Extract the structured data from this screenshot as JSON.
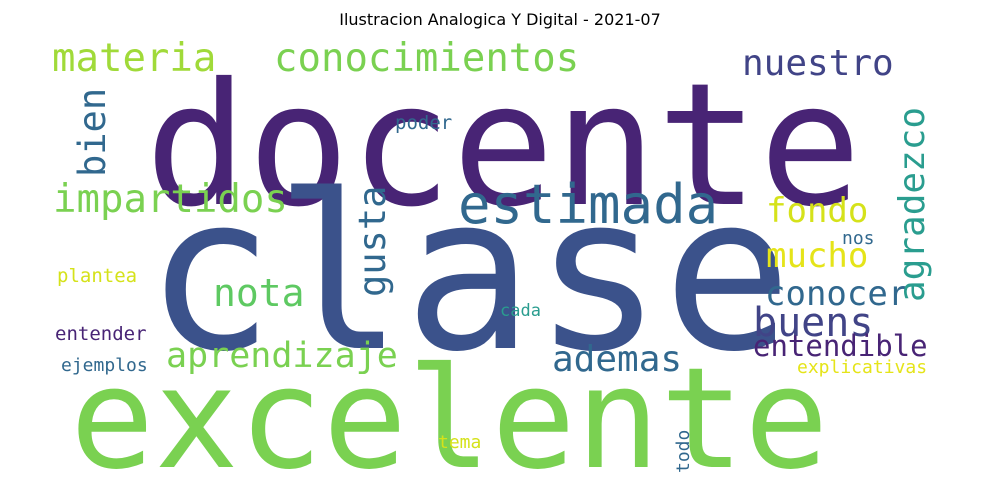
{
  "title": "Ilustracion Analogica Y Digital - 2021-07",
  "words": {
    "docente": {
      "text": "docente",
      "color": "#482475"
    },
    "clase": {
      "text": "clase",
      "color": "#3b528b"
    },
    "excelente": {
      "text": "excelente",
      "color": "#7ad151"
    },
    "materia": {
      "text": "materia",
      "color": "#a0da39"
    },
    "conocimientos": {
      "text": "conocimientos",
      "color": "#7ad151"
    },
    "nuestro": {
      "text": "nuestro",
      "color": "#414487"
    },
    "agradezco": {
      "text": "agradezco",
      "color": "#2a9d8f"
    },
    "bien": {
      "text": "bien",
      "color": "#31688e"
    },
    "poder": {
      "text": "poder",
      "color": "#31688e"
    },
    "estimada": {
      "text": "estimada",
      "color": "#31688e"
    },
    "impartidos": {
      "text": "impartidos",
      "color": "#7ad151"
    },
    "gusta": {
      "text": "gusta",
      "color": "#31688e"
    },
    "fondo": {
      "text": "fondo",
      "color": "#d5e21a"
    },
    "mucho": {
      "text": "mucho",
      "color": "#e5e419"
    },
    "nos": {
      "text": "nos",
      "color": "#31688e"
    },
    "nota": {
      "text": "nota",
      "color": "#5ec962"
    },
    "conocer": {
      "text": "conocer",
      "color": "#31688e"
    },
    "plantea": {
      "text": "plantea",
      "color": "#d5e21a"
    },
    "buens": {
      "text": "buens",
      "color": "#414487"
    },
    "cada": {
      "text": "cada",
      "color": "#2a9d8f"
    },
    "entender": {
      "text": "entender",
      "color": "#482475"
    },
    "aprendizaje": {
      "text": "aprendizaje",
      "color": "#7ad151"
    },
    "ademas": {
      "text": "ademas",
      "color": "#31688e"
    },
    "entendible": {
      "text": "entendible",
      "color": "#482475"
    },
    "ejemplos": {
      "text": "ejemplos",
      "color": "#31688e"
    },
    "explicativas": {
      "text": "explicativas",
      "color": "#e5e419"
    },
    "tema": {
      "text": "tema",
      "color": "#d5e21a"
    },
    "todo": {
      "text": "todo",
      "color": "#31688e"
    }
  }
}
